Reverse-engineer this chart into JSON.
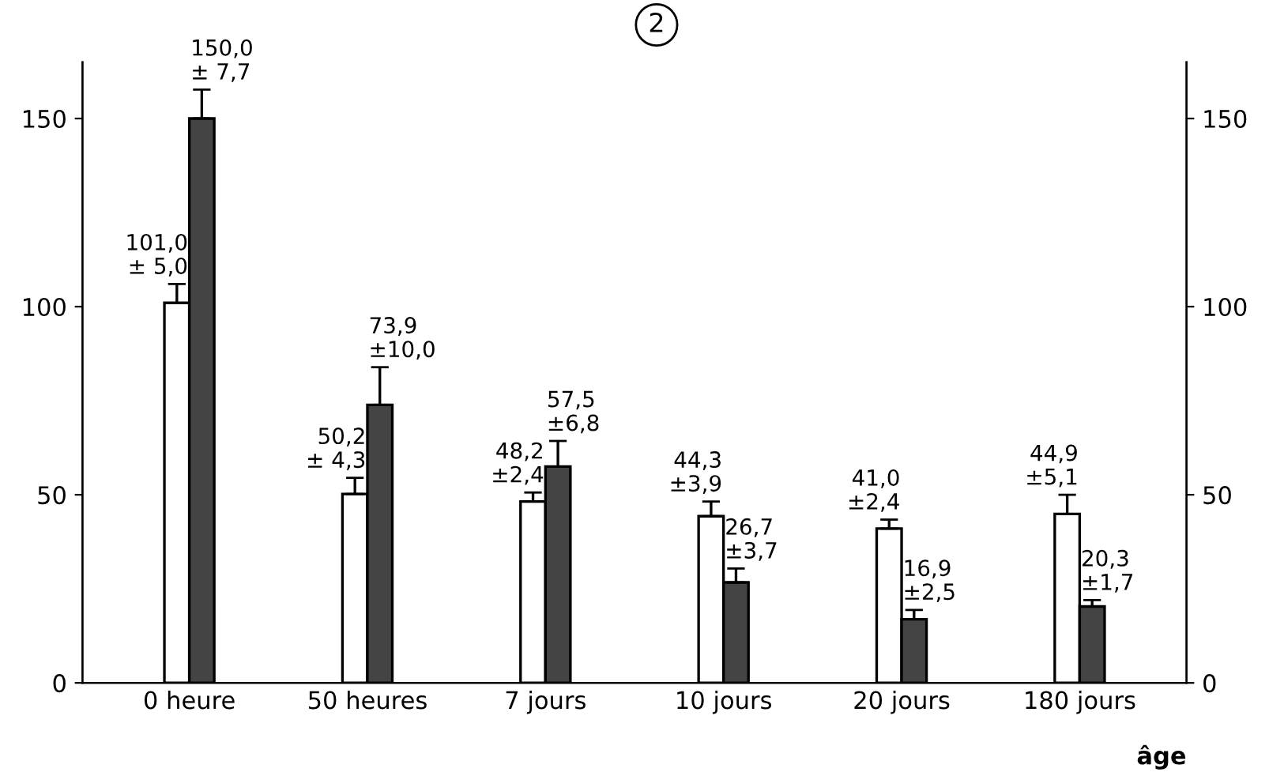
{
  "chart_data": {
    "type": "bar",
    "title": "2",
    "xlabel": "âge",
    "categories": [
      "0 heure",
      "50 heures",
      "7 jours",
      "10 jours",
      "20 jours",
      "180 jours"
    ],
    "series": [
      {
        "color": "#ffffff",
        "values": [
          101.0,
          50.2,
          48.2,
          44.3,
          41.0,
          44.9
        ],
        "errors": [
          5.0,
          4.3,
          2.4,
          3.9,
          2.4,
          5.1
        ],
        "value_labels": [
          "101,0\n± 5,0",
          "50,2\n± 4,3",
          "48,2\n±2,4",
          "44,3\n±3,9",
          "41,0\n±2,4",
          "44,9\n±5,1"
        ]
      },
      {
        "color": "#444444",
        "values": [
          150.0,
          73.9,
          57.5,
          26.7,
          16.9,
          20.3
        ],
        "errors": [
          7.7,
          10.0,
          6.8,
          3.7,
          2.5,
          1.7
        ],
        "value_labels": [
          "150,0\n± 7,7",
          "73,9\n±10,0",
          "57,5\n±6,8",
          "26,7\n±3,7",
          "16,9\n±2,5",
          "20,3\n±1,7"
        ]
      }
    ],
    "ylim": [
      0,
      165
    ],
    "yticks": [
      0,
      50,
      100,
      150
    ],
    "y2lim": [
      0,
      165
    ],
    "y2ticks": [
      0,
      50,
      100,
      150
    ],
    "grid": false,
    "legend": false
  }
}
